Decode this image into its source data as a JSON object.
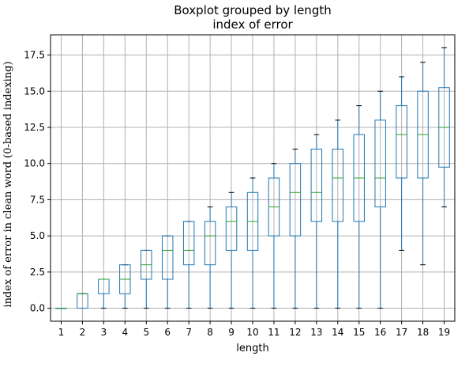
{
  "chart_data": {
    "type": "box",
    "title": "Boxplot grouped by length",
    "subtitle": "index of error",
    "xlabel": "length",
    "ylabel": "index of error in clean word (0-based indexing)",
    "ylim": [
      -0.9,
      18.9
    ],
    "yticks": [
      "0.0",
      "2.5",
      "5.0",
      "7.5",
      "10.0",
      "12.5",
      "15.0",
      "17.5"
    ],
    "grid": true,
    "categories": [
      "1",
      "2",
      "3",
      "4",
      "5",
      "6",
      "7",
      "8",
      "9",
      "10",
      "11",
      "12",
      "13",
      "14",
      "15",
      "16",
      "17",
      "18",
      "19"
    ],
    "boxes": [
      {
        "category": "1",
        "whisker_low": 0,
        "q1": 0,
        "median": 0,
        "q3": 0,
        "whisker_high": 0
      },
      {
        "category": "2",
        "whisker_low": 0,
        "q1": 0,
        "median": 1,
        "q3": 1,
        "whisker_high": 1
      },
      {
        "category": "3",
        "whisker_low": 0,
        "q1": 1,
        "median": 2,
        "q3": 2,
        "whisker_high": 2
      },
      {
        "category": "4",
        "whisker_low": 0,
        "q1": 1,
        "median": 2,
        "q3": 3,
        "whisker_high": 3
      },
      {
        "category": "5",
        "whisker_low": 0,
        "q1": 2,
        "median": 3,
        "q3": 4,
        "whisker_high": 4
      },
      {
        "category": "6",
        "whisker_low": 0,
        "q1": 2,
        "median": 4,
        "q3": 5,
        "whisker_high": 5
      },
      {
        "category": "7",
        "whisker_low": 0,
        "q1": 3,
        "median": 4,
        "q3": 6,
        "whisker_high": 6
      },
      {
        "category": "8",
        "whisker_low": 0,
        "q1": 3,
        "median": 5,
        "q3": 6,
        "whisker_high": 7
      },
      {
        "category": "9",
        "whisker_low": 0,
        "q1": 4,
        "median": 6,
        "q3": 7,
        "whisker_high": 8
      },
      {
        "category": "10",
        "whisker_low": 0,
        "q1": 4,
        "median": 6,
        "q3": 8,
        "whisker_high": 9
      },
      {
        "category": "11",
        "whisker_low": 0,
        "q1": 5,
        "median": 7,
        "q3": 9,
        "whisker_high": 10
      },
      {
        "category": "12",
        "whisker_low": 0,
        "q1": 5,
        "median": 8,
        "q3": 10,
        "whisker_high": 11
      },
      {
        "category": "13",
        "whisker_low": 0,
        "q1": 6,
        "median": 8,
        "q3": 11,
        "whisker_high": 12
      },
      {
        "category": "14",
        "whisker_low": 0,
        "q1": 6,
        "median": 9,
        "q3": 11,
        "whisker_high": 13
      },
      {
        "category": "15",
        "whisker_low": 0,
        "q1": 6,
        "median": 9,
        "q3": 12,
        "whisker_high": 14
      },
      {
        "category": "16",
        "whisker_low": 0,
        "q1": 7,
        "median": 9,
        "q3": 13,
        "whisker_high": 15
      },
      {
        "category": "17",
        "whisker_low": 4,
        "q1": 9,
        "median": 12,
        "q3": 14,
        "whisker_high": 16
      },
      {
        "category": "18",
        "whisker_low": 3,
        "q1": 9,
        "median": 12,
        "q3": 15,
        "whisker_high": 17
      },
      {
        "category": "19",
        "whisker_low": 7,
        "q1": 9.75,
        "median": 12.5,
        "q3": 15.25,
        "whisker_high": 18
      }
    ],
    "colors": {
      "box": "#1f77b4",
      "median": "#2ca02c",
      "whisker": "#1f77b4",
      "grid": "#b0b0b0"
    }
  }
}
